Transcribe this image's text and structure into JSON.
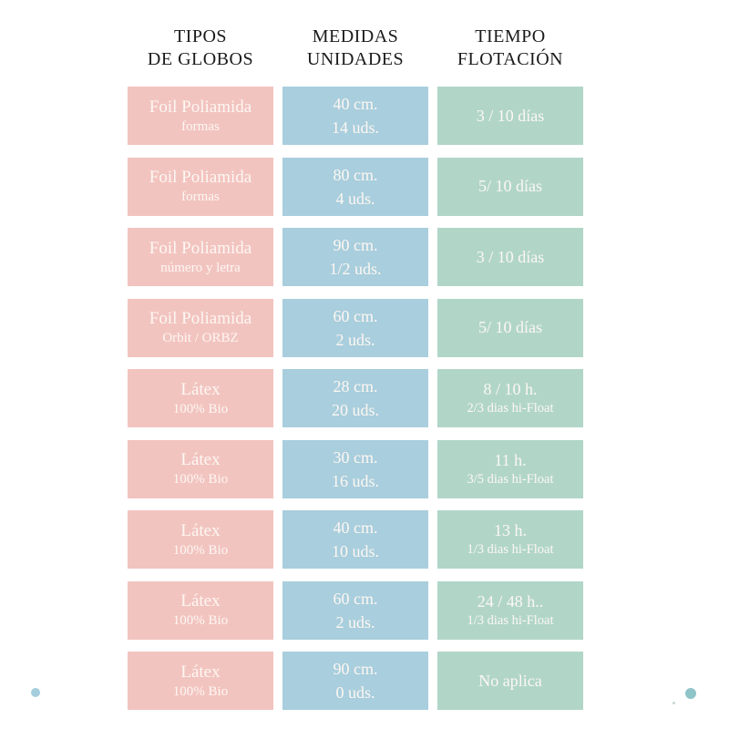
{
  "colors": {
    "tipo": "#f2c4c0",
    "medida": "#a9cedd",
    "tiempo": "#b1d6c8",
    "header_text": "#1b1b1b",
    "cell_text": "#fdf7f2",
    "dot_left": "#a5cedd",
    "dot_right": "#8fc4c8"
  },
  "headers": [
    {
      "line1": "TIPOS",
      "line2": "DE GLOBOS"
    },
    {
      "line1": "MEDIDAS",
      "line2": "UNIDADES"
    },
    {
      "line1": "TIEMPO",
      "line2": "FLOTACIÓN"
    }
  ],
  "rows": [
    {
      "tipo1": "Foil Poliamida",
      "tipo2": "formas",
      "medida1": "40 cm.",
      "medida2": "14 uds.",
      "tiempo1": "3 / 10 días",
      "tiempo2": ""
    },
    {
      "tipo1": "Foil Poliamida",
      "tipo2": "formas",
      "medida1": "80 cm.",
      "medida2": "4 uds.",
      "tiempo1": "5/ 10 días",
      "tiempo2": ""
    },
    {
      "tipo1": "Foil Poliamida",
      "tipo2": "número y letra",
      "medida1": "90 cm.",
      "medida2": "1/2 uds.",
      "tiempo1": "3 / 10 días",
      "tiempo2": ""
    },
    {
      "tipo1": "Foil Poliamida",
      "tipo2": "Orbit / ORBZ",
      "medida1": "60 cm.",
      "medida2": "2 uds.",
      "tiempo1": "5/ 10 días",
      "tiempo2": ""
    },
    {
      "tipo1": "Látex",
      "tipo2": "100% Bio",
      "medida1": "28 cm.",
      "medida2": "20 uds.",
      "tiempo1": "8 / 10 h.",
      "tiempo2": "2/3 dias hi-Float"
    },
    {
      "tipo1": "Látex",
      "tipo2": "100% Bio",
      "medida1": "30 cm.",
      "medida2": "16 uds.",
      "tiempo1": "11 h.",
      "tiempo2": "3/5 dias hi-Float"
    },
    {
      "tipo1": "Látex",
      "tipo2": "100% Bio",
      "medida1": "40 cm.",
      "medida2": "10 uds.",
      "tiempo1": "13 h.",
      "tiempo2": "1/3 dias hi-Float"
    },
    {
      "tipo1": "Látex",
      "tipo2": "100% Bio",
      "medida1": "60 cm.",
      "medida2": "2 uds.",
      "tiempo1": "24 / 48 h..",
      "tiempo2": "1/3 dias hi-Float"
    },
    {
      "tipo1": "Látex",
      "tipo2": "100% Bio",
      "medida1": "90 cm.",
      "medida2": "0 uds.",
      "tiempo1": "No aplica",
      "tiempo2": ""
    }
  ]
}
